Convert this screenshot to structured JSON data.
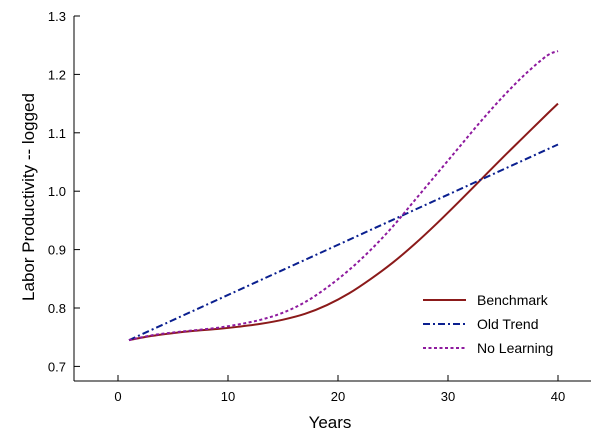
{
  "chart_data": {
    "type": "line",
    "xlabel": "Years",
    "ylabel": "Labor Productivity -- logged",
    "xlim": [
      -4,
      43
    ],
    "ylim": [
      0.675,
      1.3
    ],
    "xticks": [
      0,
      10,
      20,
      30,
      40
    ],
    "yticks": [
      0.7,
      0.8,
      0.9,
      1.0,
      1.1,
      1.2,
      1.3
    ],
    "ytick_labels": [
      "0.7",
      "0.8",
      "0.9",
      "1.0",
      "1.1",
      "1.2",
      "1.3"
    ],
    "grid": false,
    "legend_position": "bottom-right",
    "series": [
      {
        "name": "Benchmark",
        "color": "#8b1a1a",
        "dash": "solid",
        "x": [
          1,
          3,
          5,
          7,
          9,
          11,
          13,
          15,
          17,
          19,
          21,
          23,
          25,
          27,
          29,
          31,
          33,
          35,
          37,
          39,
          40
        ],
        "y": [
          0.745,
          0.752,
          0.757,
          0.761,
          0.764,
          0.768,
          0.773,
          0.78,
          0.79,
          0.805,
          0.825,
          0.85,
          0.878,
          0.91,
          0.945,
          0.982,
          1.02,
          1.058,
          1.095,
          1.132,
          1.15
        ]
      },
      {
        "name": "Old Trend",
        "color": "#0a1f8f",
        "dash": "dashdot",
        "x": [
          1,
          40
        ],
        "y": [
          0.745,
          1.08
        ]
      },
      {
        "name": "No Learning",
        "color": "#8e1a9e",
        "dash": "dotted",
        "x": [
          1,
          3,
          5,
          7,
          9,
          11,
          13,
          15,
          17,
          19,
          21,
          23,
          25,
          27,
          29,
          31,
          33,
          35,
          37,
          39,
          40
        ],
        "y": [
          0.745,
          0.753,
          0.758,
          0.762,
          0.766,
          0.772,
          0.78,
          0.792,
          0.81,
          0.835,
          0.865,
          0.9,
          0.94,
          0.985,
          1.03,
          1.075,
          1.12,
          1.162,
          1.2,
          1.232,
          1.24
        ]
      }
    ]
  }
}
